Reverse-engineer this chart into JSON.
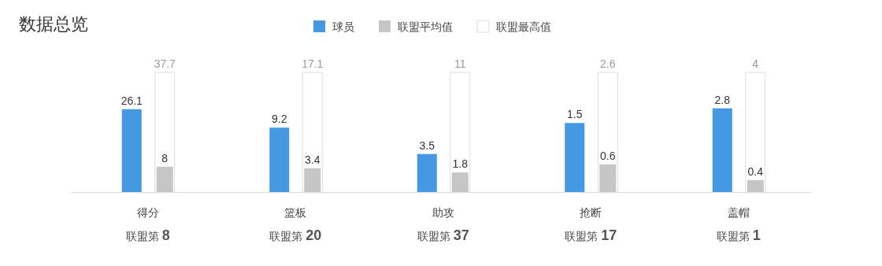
{
  "chart_data": [
    {
      "type": "bar",
      "title": "数据总览",
      "legend": "top",
      "data_labels": true,
      "categories": [
        "得分"
      ],
      "xlabel": "联盟第 8",
      "tick_labels": "x",
      "series": [
        {
          "name": "球员",
          "color": "#4599e2",
          "values": [
            26.1
          ]
        },
        {
          "name": "联盟平均值",
          "color": "#c6c6c6",
          "values": [
            8
          ]
        },
        {
          "name": "联盟最高值",
          "color": "#ffffff",
          "values": [
            37.7
          ]
        }
      ]
    },
    {
      "type": "bar",
      "data_labels": true,
      "categories": [
        "篮板"
      ],
      "xlabel": "联盟第 20",
      "tick_labels": "x",
      "series": [
        {
          "color": "#4599e2",
          "values": [
            9.2
          ]
        },
        {
          "color": "#c6c6c6",
          "values": [
            3.4
          ]
        },
        {
          "color": "#ffffff",
          "values": [
            17.1
          ]
        }
      ]
    },
    {
      "type": "bar",
      "data_labels": true,
      "categories": [
        "助攻"
      ],
      "xlabel": "联盟第 37",
      "tick_labels": "x",
      "series": [
        {
          "color": "#4599e2",
          "values": [
            3.5
          ]
        },
        {
          "color": "#c6c6c6",
          "values": [
            1.8
          ]
        },
        {
          "color": "#ffffff",
          "values": [
            11
          ]
        }
      ]
    },
    {
      "type": "bar",
      "data_labels": true,
      "categories": [
        "抢断"
      ],
      "xlabel": "联盟第 17",
      "tick_labels": "x",
      "series": [
        {
          "color": "#4599e2",
          "values": [
            1.5
          ]
        },
        {
          "color": "#c6c6c6",
          "values": [
            0.6
          ]
        },
        {
          "color": "#ffffff",
          "values": [
            2.6
          ]
        }
      ]
    },
    {
      "type": "bar",
      "data_labels": true,
      "categories": [
        "盖帽"
      ],
      "xlabel": "联盟第 1",
      "tick_labels": "x",
      "series": [
        {
          "color": "#4599e2",
          "values": [
            2.8
          ]
        },
        {
          "color": "#c6c6c6",
          "values": [
            0.4
          ]
        },
        {
          "color": "#ffffff",
          "values": [
            4
          ]
        }
      ]
    }
  ]
}
